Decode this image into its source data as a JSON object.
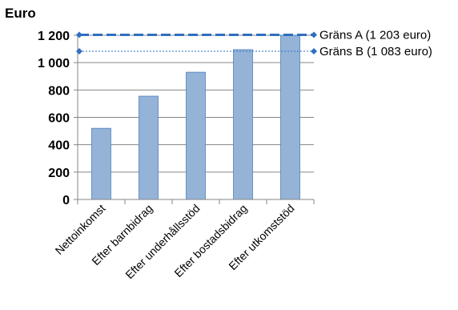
{
  "chart_data": {
    "type": "bar",
    "y_unit_label": "Euro",
    "categories": [
      "Nettoinkomst",
      "Efter barnbidrag",
      "Efter underhållsstöd",
      "Efter bostadsbidrag",
      "Efter utkomststöd"
    ],
    "values": [
      520,
      755,
      930,
      1095,
      1200
    ],
    "ylim": [
      0,
      1200
    ],
    "yticks": [
      0,
      200,
      400,
      600,
      800,
      1000,
      1200
    ],
    "ytick_labels": [
      "0",
      "200",
      "400",
      "600",
      "800",
      "1 000",
      "1 200"
    ],
    "grid": true,
    "bar_color": "#95b3d7",
    "bar_edge_color": "#4f81bd",
    "reference_lines": [
      {
        "label": "Gräns A (1 203 euro)",
        "value": 1203,
        "style": "dashed-thick",
        "color": "#2e6fc0"
      },
      {
        "label": "Gräns B (1 083 euro)",
        "value": 1083,
        "style": "dashed-thin",
        "color": "#2e6fc0"
      }
    ]
  }
}
